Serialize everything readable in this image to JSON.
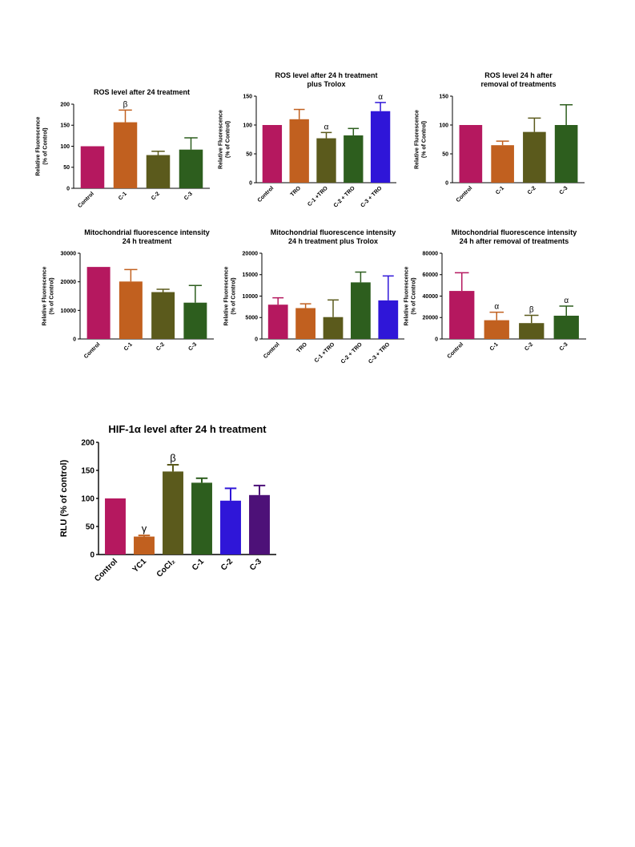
{
  "colors": {
    "magenta": "#b5185f",
    "orange": "#c1601f",
    "olive": "#5b5a1c",
    "green": "#2d5e1e",
    "blue": "#2f16d8",
    "purple": "#4d1178"
  },
  "chart_data": [
    {
      "id": "c1",
      "type": "bar",
      "title": [
        "ROS level after 24 treatment"
      ],
      "ylabel": [
        "Relative Fluorescence",
        "(% of Control)"
      ],
      "categories": [
        "Control",
        "C-1",
        "C-2",
        "C-3"
      ],
      "values": [
        100,
        157,
        79,
        92
      ],
      "errors": [
        0,
        29,
        9,
        28
      ],
      "colors": [
        "magenta",
        "orange",
        "olive",
        "green"
      ],
      "annotations": [
        "",
        "β",
        "",
        ""
      ],
      "ylim": [
        0,
        200
      ],
      "yticks": [
        0,
        50,
        100,
        150,
        200
      ]
    },
    {
      "id": "c2",
      "type": "bar",
      "title": [
        "ROS level after 24 h treatment",
        "plus Trolox"
      ],
      "ylabel": [
        "Relative Fluorescence",
        "(% of Control)"
      ],
      "categories": [
        "Control",
        "TRO",
        "C-1 +TRO",
        "C-2 + TRO",
        "C-3 + TRO"
      ],
      "values": [
        100,
        110,
        77,
        82,
        124
      ],
      "errors": [
        0,
        17,
        10,
        12,
        15
      ],
      "colors": [
        "magenta",
        "orange",
        "olive",
        "green",
        "blue"
      ],
      "annotations": [
        "",
        "",
        "α",
        "",
        "α"
      ],
      "ylim": [
        0,
        150
      ],
      "yticks": [
        0,
        50,
        100,
        150
      ]
    },
    {
      "id": "c3",
      "type": "bar",
      "title": [
        "ROS level 24 h after",
        "removal of treatments"
      ],
      "ylabel": [
        "Relative Fluorescence",
        "(% of Control)"
      ],
      "categories": [
        "Control",
        "C-1",
        "C-2",
        "C-3"
      ],
      "values": [
        100,
        65,
        88,
        100
      ],
      "errors": [
        0,
        7,
        24,
        35
      ],
      "colors": [
        "magenta",
        "orange",
        "olive",
        "green"
      ],
      "annotations": [
        "",
        "",
        "",
        ""
      ],
      "ylim": [
        0,
        150
      ],
      "yticks": [
        0,
        50,
        100,
        150
      ]
    },
    {
      "id": "c4",
      "type": "bar",
      "title": [
        "Mitochondrial fluorescence intensity",
        "24 h treatment"
      ],
      "ylabel": [
        "Relative Fluorescence",
        "(% of Control)"
      ],
      "categories": [
        "Control",
        "C-1",
        "C-2",
        "C-3"
      ],
      "values": [
        25200,
        20100,
        16400,
        12700
      ],
      "errors": [
        0,
        4200,
        1000,
        6000
      ],
      "colors": [
        "magenta",
        "orange",
        "olive",
        "green"
      ],
      "annotations": [
        "",
        "",
        "",
        ""
      ],
      "ylim": [
        0,
        30000
      ],
      "yticks": [
        0,
        10000,
        20000,
        30000
      ]
    },
    {
      "id": "c5",
      "type": "bar",
      "title": [
        "Mitochondrial fluorescence intensity",
        "24 h treatment plus Trolox"
      ],
      "ylabel": [
        "Relative Fluorescence",
        "(% of Control)"
      ],
      "categories": [
        "Control",
        "TRO",
        "C-1 +TRO",
        "C-2 + TRO",
        "C-3 + TRO"
      ],
      "values": [
        8000,
        7200,
        5100,
        13200,
        9000
      ],
      "errors": [
        1600,
        1000,
        4000,
        2400,
        5700
      ],
      "colors": [
        "magenta",
        "orange",
        "olive",
        "green",
        "blue"
      ],
      "annotations": [
        "",
        "",
        "",
        "",
        ""
      ],
      "ylim": [
        0,
        20000
      ],
      "yticks": [
        0,
        5000,
        10000,
        15000,
        20000
      ]
    },
    {
      "id": "c6",
      "type": "bar",
      "title": [
        "Mitochondrial fluorescence intensity",
        "24 h after removal of treatments"
      ],
      "ylabel": [
        "Relative Fluorescence",
        "(% of Control)"
      ],
      "categories": [
        "Control",
        "C-1",
        "C-2",
        "C-3"
      ],
      "values": [
        44800,
        17500,
        14800,
        21700
      ],
      "errors": [
        17000,
        7500,
        7300,
        9000
      ],
      "colors": [
        "magenta",
        "orange",
        "olive",
        "green"
      ],
      "annotations": [
        "",
        "α",
        "β",
        "α"
      ],
      "ylim": [
        0,
        80000
      ],
      "yticks": [
        0,
        20000,
        40000,
        60000,
        80000
      ]
    },
    {
      "id": "c7",
      "type": "bar",
      "title": [
        "HIF-1α level after 24 h treatment"
      ],
      "ylabel": [
        "RLU (% of control)"
      ],
      "categories": [
        "Control",
        "YC1",
        "CoCl₂",
        "C-1",
        "C-2",
        "C-3"
      ],
      "values": [
        100,
        32,
        148,
        128,
        96,
        106
      ],
      "errors": [
        0,
        2,
        12,
        8,
        22,
        17
      ],
      "colors": [
        "magenta",
        "orange",
        "olive",
        "green",
        "blue",
        "purple"
      ],
      "annotations": [
        "",
        "γ",
        "β",
        "",
        "",
        ""
      ],
      "ylim": [
        0,
        200
      ],
      "yticks": [
        0,
        50,
        100,
        150,
        200
      ]
    }
  ]
}
